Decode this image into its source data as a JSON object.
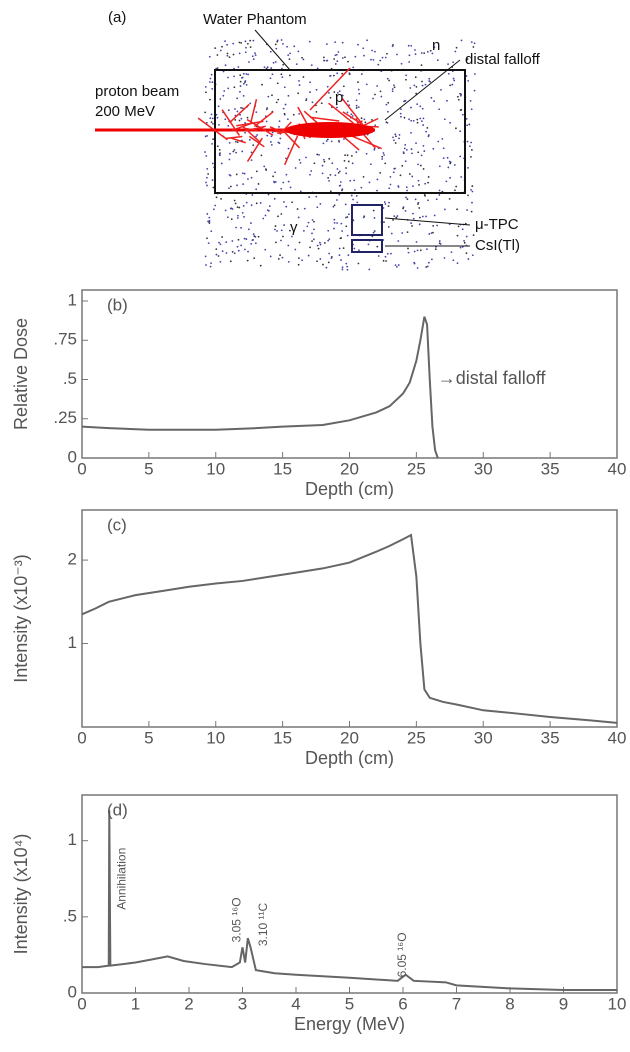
{
  "diagram": {
    "label": "(a)",
    "water": "Water Phantom",
    "n": "n",
    "falloff": "distal falloff",
    "beam1": "proton beam",
    "beam2": "200 MeV",
    "p": "p",
    "gamma": "γ",
    "tpc": "μ-TPC",
    "csi": "CsI(Tl)"
  },
  "chart_data": [
    {
      "type": "line",
      "label": "(b)",
      "x_label": "Depth (cm)",
      "y_label": "Relative Dose",
      "annotation": "→distal falloff",
      "color": "#666",
      "x": [
        0,
        2,
        5,
        8,
        10,
        13,
        15,
        18,
        20,
        22,
        23,
        24,
        24.5,
        25,
        25.3,
        25.6,
        25.8,
        26,
        26.2,
        26.4,
        26.6
      ],
      "values": [
        0.2,
        0.19,
        0.18,
        0.18,
        0.18,
        0.19,
        0.2,
        0.21,
        0.24,
        0.29,
        0.33,
        0.41,
        0.48,
        0.62,
        0.75,
        0.9,
        0.85,
        0.5,
        0.2,
        0.05,
        0
      ],
      "xlim": [
        0,
        40
      ],
      "xticks": [
        0,
        5,
        10,
        15,
        20,
        25,
        30,
        35,
        40
      ],
      "ylim": [
        0,
        1.07
      ],
      "yticks": [
        0,
        {
          "value": 0.25,
          "label": ".25"
        },
        {
          "value": 0.5,
          "label": ".5"
        },
        {
          "value": 0.75,
          "label": ".75"
        },
        1
      ]
    },
    {
      "type": "line",
      "label": "(c)",
      "x_label": "Depth (cm)",
      "y_label": "Intensity (x10⁻³)",
      "color": "#666",
      "x": [
        0,
        1,
        2,
        4,
        6,
        8,
        10,
        12,
        14,
        16,
        18,
        20,
        22,
        23,
        24,
        24.6,
        25,
        25.3,
        25.6,
        26,
        27,
        28,
        30,
        32,
        35,
        38,
        40
      ],
      "values": [
        1.35,
        1.42,
        1.5,
        1.58,
        1.63,
        1.68,
        1.72,
        1.75,
        1.8,
        1.85,
        1.9,
        1.97,
        2.1,
        2.17,
        2.25,
        2.3,
        1.8,
        1.0,
        0.45,
        0.35,
        0.3,
        0.27,
        0.2,
        0.17,
        0.12,
        0.08,
        0.05
      ],
      "xlim": [
        0,
        40
      ],
      "xticks": [
        0,
        5,
        10,
        15,
        20,
        25,
        30,
        35,
        40
      ],
      "ylim": [
        0,
        2.6
      ],
      "yticks": [
        1,
        2
      ]
    },
    {
      "type": "line",
      "label": "(d)",
      "x_label": "Energy (MeV)",
      "y_label": "Intensity (x10⁴)",
      "color": "#666",
      "annotations": [
        "Annihilation",
        "3.05 ¹⁶O",
        "3.10 ¹¹C",
        "6.05 ¹⁶O"
      ],
      "x": [
        0,
        0.3,
        0.5,
        0.51,
        0.53,
        1,
        1.3,
        1.6,
        1.9,
        2.3,
        2.8,
        2.95,
        3.0,
        3.05,
        3.1,
        3.15,
        3.25,
        3.6,
        4,
        5,
        5.9,
        6.05,
        6.2,
        6.8,
        7,
        8,
        9,
        10
      ],
      "values": [
        0.17,
        0.17,
        0.18,
        1.2,
        0.18,
        0.2,
        0.22,
        0.24,
        0.21,
        0.19,
        0.17,
        0.2,
        0.3,
        0.2,
        0.36,
        0.3,
        0.15,
        0.13,
        0.12,
        0.1,
        0.08,
        0.12,
        0.08,
        0.07,
        0.05,
        0.03,
        0.02,
        0.02
      ],
      "xlim": [
        0,
        10
      ],
      "xticks": [
        0,
        1,
        2,
        3,
        4,
        5,
        6,
        7,
        8,
        9,
        10
      ],
      "ylim": [
        0,
        1.3
      ],
      "yticks": [
        0,
        {
          "value": 0.5,
          "label": ".5"
        },
        1
      ]
    }
  ]
}
